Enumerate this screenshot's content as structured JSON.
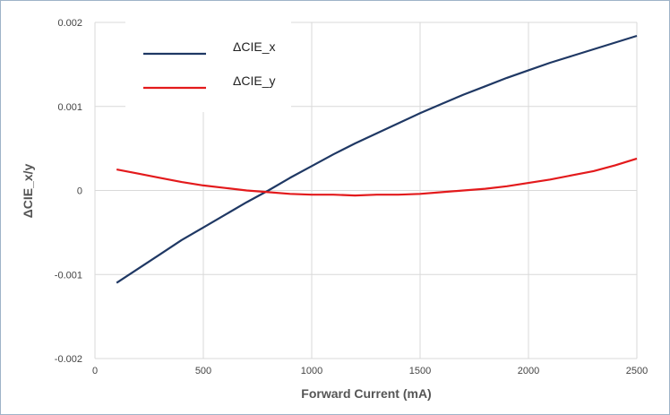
{
  "chart_data": {
    "type": "line",
    "title": "",
    "xlabel": "Forward Current (mA)",
    "ylabel": "ΔCIE_x/y",
    "xlim": [
      0,
      2500
    ],
    "ylim": [
      -0.002,
      0.002
    ],
    "x_ticks": [
      "0",
      "500",
      "1000",
      "1500",
      "2000",
      "2500"
    ],
    "y_ticks": [
      "-0.002",
      "-0.001",
      "0",
      "0.001",
      "0.002"
    ],
    "grid": true,
    "legend_position": "top-left",
    "series": [
      {
        "name": "ΔCIE_x",
        "color": "#1f3864",
        "x": [
          100,
          200,
          300,
          400,
          500,
          600,
          700,
          800,
          900,
          1000,
          1100,
          1200,
          1300,
          1400,
          1500,
          1600,
          1700,
          1800,
          1900,
          2000,
          2100,
          2200,
          2300,
          2400,
          2500
        ],
        "y": [
          -0.0011,
          -0.00093,
          -0.00076,
          -0.00059,
          -0.00044,
          -0.00029,
          -0.00014,
          0.0,
          0.00015,
          0.00029,
          0.00043,
          0.00056,
          0.00068,
          0.0008,
          0.00092,
          0.00103,
          0.00114,
          0.00124,
          0.00134,
          0.00143,
          0.00152,
          0.0016,
          0.00168,
          0.00176,
          0.00184
        ]
      },
      {
        "name": "ΔCIE_y",
        "color": "#e31a1c",
        "x": [
          100,
          200,
          300,
          400,
          500,
          600,
          700,
          800,
          900,
          1000,
          1100,
          1200,
          1300,
          1400,
          1500,
          1600,
          1700,
          1800,
          1900,
          2000,
          2100,
          2200,
          2300,
          2400,
          2500
        ],
        "y": [
          0.00025,
          0.0002,
          0.00015,
          0.0001,
          6e-05,
          3e-05,
          0.0,
          -2e-05,
          -4e-05,
          -5e-05,
          -5e-05,
          -6e-05,
          -5e-05,
          -5e-05,
          -4e-05,
          -2e-05,
          0.0,
          2e-05,
          5e-05,
          9e-05,
          0.00013,
          0.00018,
          0.00023,
          0.0003,
          0.00038
        ]
      }
    ]
  }
}
